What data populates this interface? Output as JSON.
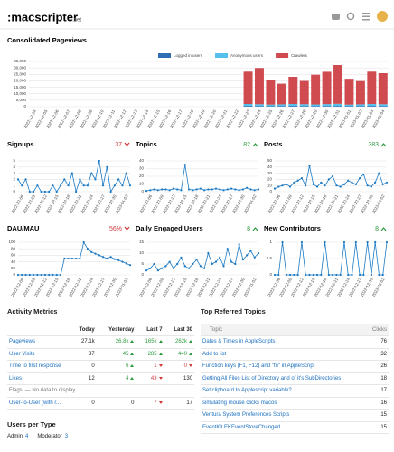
{
  "header": {
    "logo": ":macscripter",
    "logo_suffix": ".net"
  },
  "section_title": "Consolidated Pageviews",
  "chart_data": [
    {
      "type": "stacked-bar",
      "categories": [
        "2022-12-04",
        "2022-12-05",
        "2022-12-06",
        "2022-12-07",
        "2022-12-08",
        "2022-12-09",
        "2022-12-10",
        "2022-12-11",
        "2022-12-12",
        "2022-12-13",
        "2022-12-14",
        "2022-12-15",
        "2022-12-16",
        "2022-12-17",
        "2022-12-18",
        "2022-12-19",
        "2022-12-20",
        "2022-12-21",
        "2022-12-22",
        "2022-12-23",
        "2022-12-24",
        "2022-12-25",
        "2022-12-26",
        "2022-12-27",
        "2022-12-28",
        "2022-12-29",
        "2022-12-30",
        "2022-12-31",
        "2023-01-01",
        "2023-01-02",
        "2023-01-03",
        "2023-01-04"
      ],
      "series": [
        {
          "name": "Logged in users",
          "color": "#2f6db5",
          "values": [
            null,
            null,
            null,
            null,
            null,
            null,
            null,
            null,
            null,
            null,
            null,
            null,
            null,
            null,
            null,
            null,
            null,
            null,
            null,
            600,
            500,
            400,
            500,
            600,
            500,
            400,
            500,
            600,
            400,
            500,
            600,
            500
          ]
        },
        {
          "name": "Anonymous users",
          "color": "#55c0ec",
          "values": [
            null,
            null,
            null,
            null,
            null,
            null,
            null,
            null,
            null,
            null,
            null,
            null,
            null,
            null,
            null,
            null,
            null,
            null,
            null,
            1500,
            1400,
            1200,
            1300,
            1500,
            1400,
            1300,
            1500,
            1600,
            1200,
            1300,
            1500,
            1400
          ]
        },
        {
          "name": "Crawlers",
          "color": "#cf4b4f",
          "values": [
            null,
            null,
            null,
            null,
            null,
            null,
            null,
            null,
            null,
            null,
            null,
            null,
            null,
            null,
            null,
            null,
            null,
            null,
            null,
            25000,
            28000,
            19000,
            16000,
            21000,
            18000,
            23000,
            25000,
            30000,
            20000,
            18000,
            25000,
            24000
          ]
        }
      ],
      "ylim": [
        0,
        35000
      ],
      "yticks": [
        0,
        {
          "value": 5000,
          "label": "5,000"
        },
        {
          "value": 10000,
          "label": "10,000"
        },
        {
          "value": 15000,
          "label": "15,000"
        },
        {
          "value": 20000,
          "label": "20,000"
        },
        {
          "value": 25000,
          "label": "25,000"
        },
        {
          "value": 30000,
          "label": "30,000"
        },
        {
          "value": 35000,
          "label": "35,000"
        }
      ],
      "grid": true
    },
    {
      "type": "line",
      "title": "Signups",
      "stat": "37",
      "trend": "down",
      "color": "#1a79c4",
      "categories": [
        null,
        "2022-12-06",
        null,
        null,
        "2022-12-09",
        null,
        null,
        "2022-12-12",
        null,
        null,
        "2022-12-15",
        null,
        null,
        "2022-12-18",
        null,
        null,
        "2022-12-21",
        null,
        null,
        "2022-12-24",
        null,
        null,
        "2022-12-27",
        null,
        null,
        "2022-12-30",
        null,
        null,
        "2023-01-02",
        null
      ],
      "values": [
        2,
        1,
        2,
        0,
        0,
        1,
        0,
        0,
        0,
        1,
        0,
        1,
        2,
        1,
        3,
        0,
        2,
        1,
        1,
        3,
        2,
        5,
        1,
        4,
        0,
        1,
        2,
        1,
        3,
        1
      ],
      "ylim": [
        0,
        5
      ],
      "yticks": [
        0,
        1,
        2,
        3,
        4,
        5
      ],
      "grid": true
    },
    {
      "type": "line",
      "title": "Topics",
      "stat": "82",
      "trend": "up",
      "color": "#1a79c4",
      "categories": [
        null,
        "2022-12-06",
        null,
        null,
        "2022-12-09",
        null,
        null,
        "2022-12-12",
        null,
        null,
        "2022-12-15",
        null,
        null,
        "2022-12-18",
        null,
        null,
        "2022-12-21",
        null,
        null,
        "2022-12-24",
        null,
        null,
        "2022-12-27",
        null,
        null,
        "2022-12-30",
        null,
        null,
        "2023-01-02",
        null
      ],
      "values": [
        1,
        2,
        3,
        2,
        3,
        3,
        2,
        4,
        3,
        2,
        35,
        3,
        2,
        3,
        4,
        2,
        3,
        3,
        4,
        3,
        2,
        3,
        4,
        3,
        2,
        3,
        5,
        3,
        2,
        3
      ],
      "ylim": [
        0,
        40
      ],
      "yticks": [
        0,
        10,
        20,
        30,
        40
      ],
      "grid": true
    },
    {
      "type": "line",
      "title": "Posts",
      "stat": "383",
      "trend": "up",
      "color": "#1a79c4",
      "categories": [
        null,
        "2022-12-06",
        null,
        null,
        "2022-12-09",
        null,
        null,
        "2022-12-12",
        null,
        null,
        "2022-12-15",
        null,
        null,
        "2022-12-18",
        null,
        null,
        "2022-12-21",
        null,
        null,
        "2022-12-24",
        null,
        null,
        "2022-12-27",
        null,
        null,
        "2022-12-30",
        null,
        null,
        "2023-01-02",
        null
      ],
      "values": [
        5,
        8,
        10,
        12,
        8,
        15,
        18,
        22,
        10,
        42,
        12,
        8,
        15,
        10,
        20,
        25,
        10,
        8,
        12,
        18,
        15,
        12,
        22,
        28,
        10,
        8,
        15,
        30,
        12,
        15
      ],
      "ylim": [
        0,
        50
      ],
      "yticks": [
        0,
        10,
        20,
        30,
        40,
        50
      ],
      "grid": true
    },
    {
      "type": "line",
      "title": "DAU/MAU",
      "stat": "56%",
      "trend": "down",
      "color": "#1a79c4",
      "categories": [
        null,
        "2022-12-06",
        null,
        null,
        "2022-12-09",
        null,
        null,
        "2022-12-12",
        null,
        null,
        "2022-12-15",
        null,
        null,
        "2022-12-18",
        null,
        null,
        "2022-12-21",
        null,
        null,
        "2022-12-24",
        null,
        null,
        "2022-12-27",
        null,
        null,
        "2022-12-30",
        null,
        null,
        "2023-01-02",
        null
      ],
      "values": [
        0,
        0,
        0,
        0,
        0,
        0,
        0,
        0,
        0,
        0,
        0,
        0,
        50,
        50,
        50,
        50,
        50,
        100,
        80,
        70,
        65,
        60,
        55,
        50,
        55,
        48,
        45,
        40,
        35,
        30
      ],
      "ylim": [
        0,
        100
      ],
      "yticks": [
        0,
        20,
        40,
        60,
        80,
        100
      ],
      "grid": true
    },
    {
      "type": "line",
      "title": "Daily Engaged Users",
      "stat": "8",
      "trend": "up",
      "color": "#1a79c4",
      "categories": [
        null,
        "2022-12-06",
        null,
        null,
        "2022-12-09",
        null,
        null,
        "2022-12-12",
        null,
        null,
        "2022-12-15",
        null,
        null,
        "2022-12-18",
        null,
        null,
        "2022-12-21",
        null,
        null,
        "2022-12-24",
        null,
        null,
        "2022-12-27",
        null,
        null,
        "2022-12-30",
        null,
        null,
        "2023-01-02",
        null
      ],
      "values": [
        2,
        3,
        5,
        2,
        3,
        4,
        6,
        3,
        5,
        8,
        4,
        3,
        5,
        7,
        4,
        3,
        10,
        5,
        6,
        8,
        4,
        12,
        6,
        5,
        14,
        7,
        9,
        11,
        8,
        10
      ],
      "ylim": [
        0,
        15
      ],
      "yticks": [
        0,
        5,
        10,
        15
      ],
      "grid": true
    },
    {
      "type": "line",
      "title": "New Contributors",
      "stat": "8",
      "trend": "up",
      "color": "#1a79c4",
      "categories": [
        null,
        "2022-12-06",
        null,
        null,
        "2022-12-09",
        null,
        null,
        "2022-12-12",
        null,
        null,
        "2022-12-15",
        null,
        null,
        "2022-12-18",
        null,
        null,
        "2022-12-21",
        null,
        null,
        "2022-12-24",
        null,
        null,
        "2022-12-27",
        null,
        null,
        "2022-12-30",
        null,
        null,
        "2023-01-02",
        null
      ],
      "values": [
        0,
        0,
        1,
        0,
        0,
        0,
        0,
        1,
        0,
        0,
        0,
        0,
        0,
        1,
        0,
        0,
        0,
        0,
        1,
        0,
        0,
        1,
        0,
        0,
        1,
        0,
        1,
        0,
        0,
        1
      ],
      "ylim": [
        0,
        1
      ],
      "yticks": [
        0,
        0.5,
        1
      ],
      "grid": true
    }
  ],
  "activity_metrics": {
    "title": "Activity Metrics",
    "columns": [
      "Today",
      "Yesterday",
      "Last 7",
      "Last 30"
    ],
    "rows": [
      {
        "label": "Pageviews",
        "cells": [
          {
            "text": "27.1k"
          },
          {
            "text": "26.8k",
            "trend": "up"
          },
          {
            "text": "165k",
            "trend": "up"
          },
          {
            "text": "262k",
            "trend": "up"
          }
        ]
      },
      {
        "label": "User Visits",
        "cells": [
          {
            "text": "37"
          },
          {
            "text": "45",
            "trend": "up"
          },
          {
            "text": "285",
            "trend": "up"
          },
          {
            "text": "440",
            "trend": "up"
          }
        ]
      },
      {
        "label": "Time to first response",
        "cells": [
          {
            "text": "0"
          },
          {
            "text": "6",
            "trend": "up"
          },
          {
            "text": "1",
            "trend": "down"
          },
          {
            "text": "0",
            "trend": "down"
          }
        ]
      },
      {
        "label": "Likes",
        "cells": [
          {
            "text": "12"
          },
          {
            "text": "4",
            "trend": "up"
          },
          {
            "text": "43",
            "trend": "down"
          },
          {
            "text": "130"
          }
        ]
      },
      {
        "label": "Flags",
        "note": "— No data to display"
      },
      {
        "label": "User-to-User (with r...",
        "cells": [
          {
            "text": "0"
          },
          {
            "text": "0"
          },
          {
            "text": "7",
            "trend": "down"
          },
          {
            "text": "17"
          }
        ]
      }
    ]
  },
  "users_per_type": {
    "title": "Users per Type",
    "items": [
      {
        "name": "Admin",
        "count": 4
      },
      {
        "name": "Moderator",
        "count": 3
      }
    ]
  },
  "top_referred_topics": {
    "title": "Top Referred Topics",
    "columns": [
      "Topic",
      "Clicks"
    ],
    "rows": [
      {
        "topic": "Dates & Times in AppleScripts",
        "clicks": 76
      },
      {
        "topic": "Add to list",
        "clicks": 32
      },
      {
        "topic": "Function keys (F1, F12) and \"fn\" in AppleScript",
        "clicks": 26
      },
      {
        "topic": "Getting All Files List of Directory and of it's SubDirectories",
        "clicks": 18
      },
      {
        "topic": "Set clipboard to Applescript variable?",
        "clicks": 17
      },
      {
        "topic": "simulating mouse clicks macos",
        "clicks": 16
      },
      {
        "topic": "Ventura System Preferences Scripts",
        "clicks": 15
      },
      {
        "topic": "EventKit EKEventStoreChanged",
        "clicks": 15
      }
    ]
  }
}
